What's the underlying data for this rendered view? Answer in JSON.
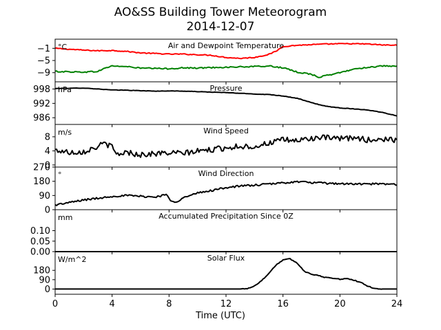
{
  "figure": {
    "title_line1": "AO&SS Building Tower Meteorogram",
    "title_line2": "2014-12-07",
    "xlabel": "Time (UTC)"
  },
  "chart_data": {
    "type": "line",
    "x_axis": {
      "min": 0,
      "max": 24,
      "ticks": [
        0,
        4,
        8,
        12,
        16,
        20,
        24
      ],
      "tick_labels": [
        "0",
        "4",
        "8",
        "12",
        "16",
        "20",
        "24"
      ]
    },
    "panels": [
      {
        "id": "temperature",
        "title": "Air and Dewpoint Temperature",
        "unit": "°C",
        "ylim": [
          -12,
          2
        ],
        "yticks": [
          -1,
          -5,
          -9
        ],
        "ytick_labels": [
          "−1",
          "−5",
          "−9"
        ],
        "series": [
          {
            "color": "#ff0000",
            "noise": 0.15,
            "points": [
              [
                0,
                -1
              ],
              [
                1,
                -1.3
              ],
              [
                2,
                -1.6
              ],
              [
                3,
                -1.8
              ],
              [
                4,
                -1.7
              ],
              [
                5,
                -2
              ],
              [
                6,
                -2.5
              ],
              [
                7,
                -2.7
              ],
              [
                8,
                -2.9
              ],
              [
                9,
                -2.9
              ],
              [
                10,
                -3.1
              ],
              [
                11,
                -3.3
              ],
              [
                12,
                -4
              ],
              [
                13,
                -4.3
              ],
              [
                14,
                -4
              ],
              [
                15,
                -3
              ],
              [
                15.5,
                -2
              ],
              [
                16,
                -0.4
              ],
              [
                17,
                0
              ],
              [
                18,
                0.2
              ],
              [
                19,
                0.4
              ],
              [
                20,
                0.5
              ],
              [
                21,
                0.5
              ],
              [
                22,
                0.4
              ],
              [
                23,
                0.1
              ],
              [
                24,
                0
              ]
            ]
          },
          {
            "color": "#008000",
            "noise": 0.2,
            "points": [
              [
                0,
                -8.6
              ],
              [
                1,
                -8.7
              ],
              [
                2,
                -8.8
              ],
              [
                3,
                -8.6
              ],
              [
                3.5,
                -7.5
              ],
              [
                4,
                -6.8
              ],
              [
                5,
                -7
              ],
              [
                6,
                -7.5
              ],
              [
                7,
                -7.6
              ],
              [
                8,
                -7.7
              ],
              [
                9,
                -7.4
              ],
              [
                10,
                -7.5
              ],
              [
                11,
                -7.3
              ],
              [
                12,
                -7.2
              ],
              [
                13,
                -7.1
              ],
              [
                14,
                -7
              ],
              [
                15,
                -6.8
              ],
              [
                16,
                -7.4
              ],
              [
                17,
                -8.8
              ],
              [
                18,
                -9.5
              ],
              [
                18.5,
                -10.5
              ],
              [
                19,
                -10
              ],
              [
                20,
                -9
              ],
              [
                21,
                -7.8
              ],
              [
                22,
                -7.2
              ],
              [
                23,
                -6.8
              ],
              [
                24,
                -7
              ]
            ]
          }
        ]
      },
      {
        "id": "pressure",
        "title": "Pressure",
        "unit": "hPa",
        "ylim": [
          983.2,
          1001
        ],
        "yticks": [
          998,
          992,
          986
        ],
        "ytick_labels": [
          "998",
          "992",
          "986"
        ],
        "series": [
          {
            "color": "#000000",
            "noise": 0.08,
            "points": [
              [
                0,
                998.2
              ],
              [
                1,
                998.3
              ],
              [
                2,
                998.4
              ],
              [
                3,
                998
              ],
              [
                4,
                997.6
              ],
              [
                5,
                997.5
              ],
              [
                6,
                997.3
              ],
              [
                7,
                997.1
              ],
              [
                8,
                997.2
              ],
              [
                9,
                997.1
              ],
              [
                10,
                996.9
              ],
              [
                11,
                996.7
              ],
              [
                12,
                996.5
              ],
              [
                13,
                996.2
              ],
              [
                14,
                995.9
              ],
              [
                15,
                995.7
              ],
              [
                16,
                995.1
              ],
              [
                17,
                994.1
              ],
              [
                18,
                992.3
              ],
              [
                19,
                990.8
              ],
              [
                20,
                990.1
              ],
              [
                21,
                989.7
              ],
              [
                22,
                989.2
              ],
              [
                23,
                988.2
              ],
              [
                24,
                986.8
              ]
            ]
          }
        ]
      },
      {
        "id": "wind-speed",
        "title": "Wind Speed",
        "unit": "m/s",
        "ylim": [
          -0.6,
          11.5
        ],
        "yticks": [
          8,
          4,
          0
        ],
        "ytick_labels": [
          "8",
          "4",
          "0"
        ],
        "series": [
          {
            "color": "#000000",
            "noise": 0.8,
            "points": [
              [
                0,
                4.2
              ],
              [
                1,
                3.6
              ],
              [
                2,
                3.8
              ],
              [
                3,
                5.2
              ],
              [
                3.5,
                6.2
              ],
              [
                4,
                5
              ],
              [
                4.3,
                3
              ],
              [
                5,
                3.6
              ],
              [
                6,
                2.9
              ],
              [
                7,
                3.2
              ],
              [
                8,
                3.4
              ],
              [
                9,
                3.3
              ],
              [
                10,
                3.9
              ],
              [
                11,
                4.3
              ],
              [
                12,
                4.9
              ],
              [
                13,
                5.3
              ],
              [
                14,
                5.2
              ],
              [
                15,
                6.2
              ],
              [
                16,
                7.1
              ],
              [
                17,
                6.9
              ],
              [
                18,
                7.6
              ],
              [
                19,
                7.7
              ],
              [
                20,
                7.4
              ],
              [
                21,
                7.7
              ],
              [
                22,
                7.1
              ],
              [
                23,
                7.3
              ],
              [
                24,
                7.1
              ]
            ]
          }
        ]
      },
      {
        "id": "wind-direction",
        "title": "Wind Direction",
        "unit": "°",
        "ylim": [
          0,
          270
        ],
        "yticks": [
          270,
          180,
          90,
          0
        ],
        "ytick_labels": [
          "270",
          "180",
          "90",
          "0"
        ],
        "series": [
          {
            "color": "#000000",
            "noise": 6,
            "points": [
              [
                0,
                30
              ],
              [
                1,
                45
              ],
              [
                2,
                62
              ],
              [
                3,
                72
              ],
              [
                4,
                85
              ],
              [
                5,
                90
              ],
              [
                6,
                85
              ],
              [
                7,
                80
              ],
              [
                7.8,
                95
              ],
              [
                8.1,
                60
              ],
              [
                8.5,
                50
              ],
              [
                9,
                75
              ],
              [
                10,
                105
              ],
              [
                11,
                122
              ],
              [
                12,
                140
              ],
              [
                13,
                150
              ],
              [
                14,
                155
              ],
              [
                15,
                162
              ],
              [
                16,
                170
              ],
              [
                17,
                177
              ],
              [
                18,
                172
              ],
              [
                19,
                167
              ],
              [
                20,
                165
              ],
              [
                21,
                162
              ],
              [
                22,
                163
              ],
              [
                23,
                162
              ],
              [
                24,
                160
              ]
            ]
          }
        ]
      },
      {
        "id": "precipitation",
        "title": "Accumulated Precipitation Since 0Z",
        "unit": "mm",
        "ylim": [
          0,
          0.2
        ],
        "yticks": [
          0.1,
          0.05,
          0.0
        ],
        "ytick_labels": [
          "0.10",
          "0.05",
          "0.00"
        ],
        "series": [
          {
            "color": "#000000",
            "noise": 0,
            "points": [
              [
                0,
                0
              ],
              [
                24,
                0
              ]
            ]
          }
        ]
      },
      {
        "id": "solar-flux",
        "title": "Solar Flux",
        "unit": "W/m^2",
        "ylim": [
          -50,
          360
        ],
        "yticks": [
          180,
          90,
          0
        ],
        "ytick_labels": [
          "180",
          "90",
          "0"
        ],
        "series": [
          {
            "color": "#000000",
            "noise": 4,
            "points": [
              [
                0,
                0
              ],
              [
                13,
                0
              ],
              [
                13.5,
                5
              ],
              [
                14,
                30
              ],
              [
                14.5,
                80
              ],
              [
                15,
                150
              ],
              [
                15.5,
                230
              ],
              [
                16,
                280
              ],
              [
                16.5,
                290
              ],
              [
                17,
                250
              ],
              [
                17.5,
                170
              ],
              [
                18,
                145
              ],
              [
                18.5,
                130
              ],
              [
                19,
                110
              ],
              [
                19.5,
                105
              ],
              [
                20,
                95
              ],
              [
                20.5,
                100
              ],
              [
                21,
                85
              ],
              [
                21.5,
                60
              ],
              [
                22,
                25
              ],
              [
                22.5,
                5
              ],
              [
                23,
                0
              ],
              [
                24,
                0
              ]
            ]
          }
        ]
      }
    ]
  }
}
